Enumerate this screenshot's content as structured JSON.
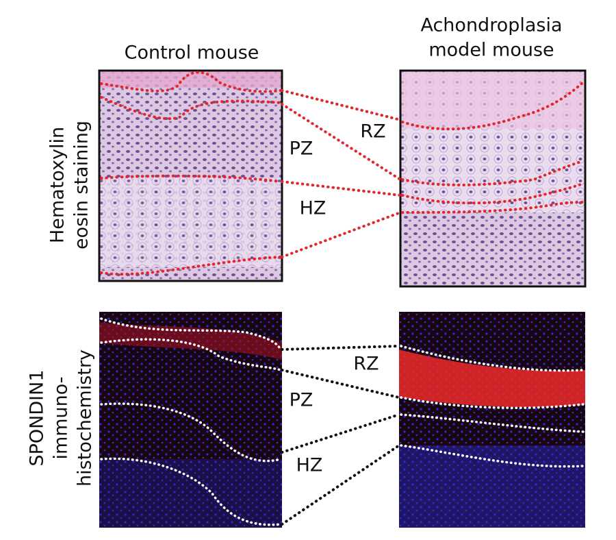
{
  "columns": [
    {
      "label_lines": [
        "Control mouse"
      ]
    },
    {
      "label_lines": [
        "Achondroplasia",
        "model mouse"
      ]
    }
  ],
  "rows": [
    {
      "label_lines": [
        "Hematoxylin",
        "eosin staining"
      ],
      "zones": [
        "RZ",
        "PZ",
        "HZ"
      ]
    },
    {
      "label_lines": [
        "SPONDIN1",
        "immuno-",
        "histochemistry"
      ],
      "zones": [
        "RZ",
        "PZ",
        "HZ"
      ]
    }
  ]
}
